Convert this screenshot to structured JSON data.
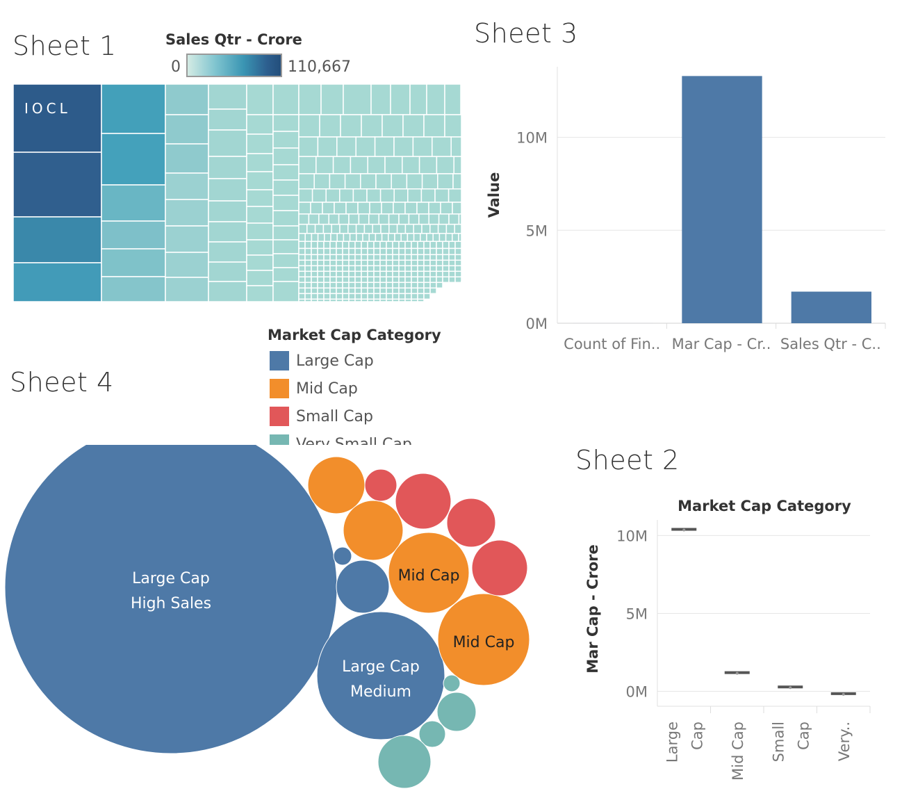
{
  "sheets": {
    "sheet1_title": "Sheet 1",
    "sheet2_title": "Sheet 2",
    "sheet3_title": "Sheet 3",
    "sheet4_title": "Sheet 4"
  },
  "colors": {
    "large_cap": "#4e79a7",
    "mid_cap": "#f28e2b",
    "small_cap": "#e15759",
    "very_small_cap": "#76b7b2",
    "bar": "#4e79a7",
    "treemap_low": "#a6d9d3",
    "treemap_high": "#2d5b8a"
  },
  "sales_legend": {
    "title": "Sales Qtr - Crore",
    "min_label": "0",
    "max_label": "110,667"
  },
  "market_cap_legend": {
    "title": "Market Cap Category",
    "items": [
      {
        "label": "Large Cap",
        "color": "#4e79a7"
      },
      {
        "label": "Mid Cap",
        "color": "#f28e2b"
      },
      {
        "label": "Small Cap",
        "color": "#e15759"
      },
      {
        "label": "Very Small Cap",
        "color": "#76b7b2"
      }
    ]
  },
  "chart_data": [
    {
      "id": "sheet1",
      "type": "treemap",
      "measure": "Sales Qtr - Crore",
      "color_range": [
        0,
        110667
      ],
      "labeled_item": "IOCL"
    },
    {
      "id": "sheet3",
      "type": "bar",
      "ylabel": "Value",
      "categories": [
        "Count of Fin..",
        "Mar Cap - Cr..",
        "Sales Qtr - C.."
      ],
      "values": [
        500,
        13300000,
        1700000
      ],
      "yticks": [
        0,
        5000000,
        10000000
      ],
      "ytick_labels": [
        "0M",
        "5M",
        "10M"
      ],
      "ylim": [
        0,
        13800000
      ]
    },
    {
      "id": "sheet2",
      "type": "box",
      "title": "Market Cap Category",
      "ylabel": "Mar Cap - Crore",
      "categories": [
        "Large Cap",
        "Mid Cap",
        "Small Cap",
        "Very.."
      ],
      "values": [
        10400000,
        1200000,
        280000,
        -150000
      ],
      "yticks": [
        0,
        5000000,
        10000000
      ],
      "ytick_labels": [
        "0M",
        "5M",
        "10M"
      ],
      "ylim": [
        -600000,
        11000000
      ]
    },
    {
      "id": "sheet4",
      "type": "bubble",
      "labels": [
        {
          "category": "Large Cap",
          "line1": "Large Cap",
          "line2": "High Sales"
        },
        {
          "category": "Large Cap",
          "line1": "Large Cap",
          "line2": "Medium"
        },
        {
          "category": "Mid Cap",
          "line1": "Mid Cap",
          "line2": ""
        },
        {
          "category": "Mid Cap",
          "line1": "Mid Cap",
          "line2": ""
        }
      ]
    }
  ]
}
